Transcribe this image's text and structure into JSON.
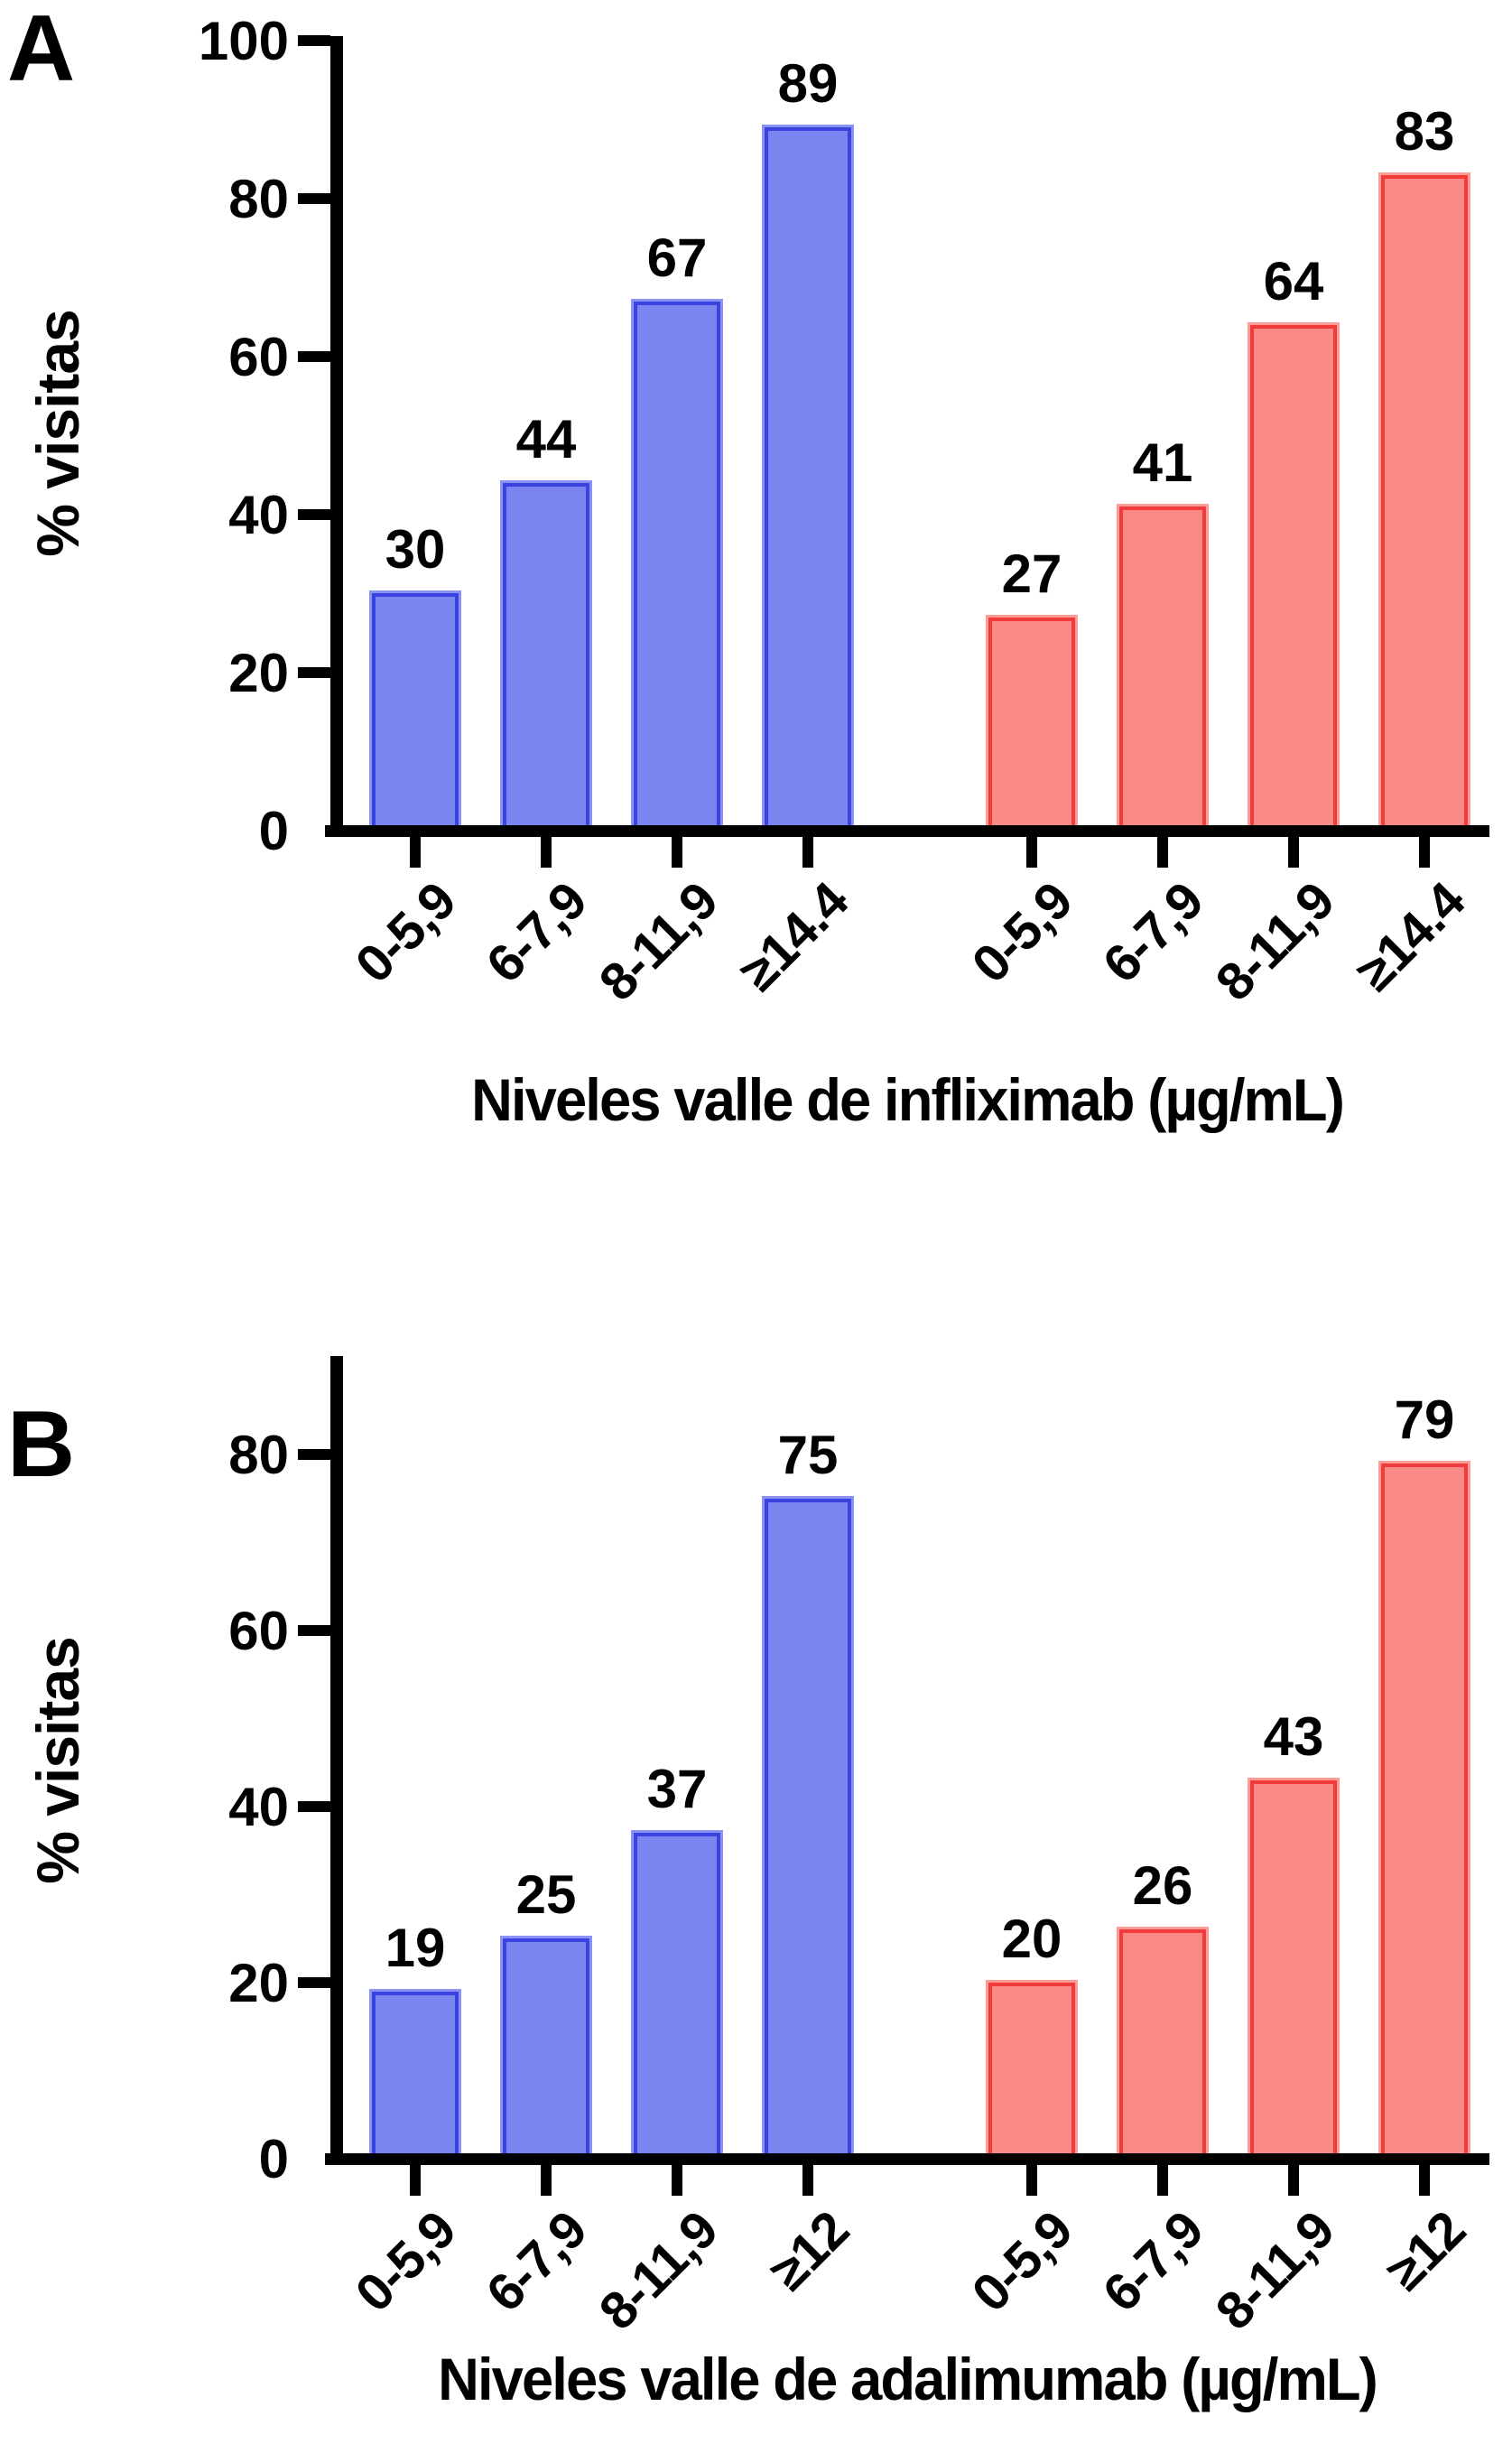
{
  "figure": {
    "background": "#ffffff",
    "text_color": "#000000",
    "blue_fill": "#7b85f0",
    "blue_border": "#3a43e0",
    "blue_rim": "#8a92f6",
    "red_fill": "#fa8a85",
    "red_border": "#f23b3b",
    "red_rim": "#fd9c96"
  },
  "chart_data": [
    {
      "type": "bar",
      "panel_label": "A",
      "ylabel": "% visitas",
      "xlabel": "Niveles valle de infliximab (µg/mL)",
      "ylim": [
        0,
        100
      ],
      "yticks": [
        0,
        20,
        40,
        60,
        80,
        100
      ],
      "grid": "off",
      "legend": "none",
      "categories": [
        "0-5,9",
        "6-7,9",
        "8-11,9",
        "≥14.4"
      ],
      "series": [
        {
          "name": "blue-group",
          "color": "blue",
          "values": [
            30,
            44,
            67,
            89
          ]
        },
        {
          "name": "red-group",
          "color": "red",
          "values": [
            27,
            41,
            64,
            83
          ]
        }
      ],
      "bar_labels": [
        [
          30,
          44,
          67,
          89
        ],
        [
          27,
          41,
          64,
          83
        ]
      ]
    },
    {
      "type": "bar",
      "panel_label": "B",
      "ylabel": "% visitas",
      "xlabel": "Niveles valle de adalimumab (µg/mL)",
      "ylim": [
        0,
        91
      ],
      "yticks": [
        0,
        20,
        40,
        60,
        80
      ],
      "grid": "off",
      "legend": "none",
      "categories": [
        "0-5,9",
        "6-7,9",
        "8-11,9",
        "≥12"
      ],
      "series": [
        {
          "name": "blue-group",
          "color": "blue",
          "values": [
            19,
            25,
            37,
            75
          ]
        },
        {
          "name": "red-group",
          "color": "red",
          "values": [
            20,
            26,
            43,
            79
          ]
        }
      ],
      "bar_labels": [
        [
          19,
          25,
          37,
          75
        ],
        [
          20,
          26,
          43,
          79
        ]
      ]
    }
  ]
}
